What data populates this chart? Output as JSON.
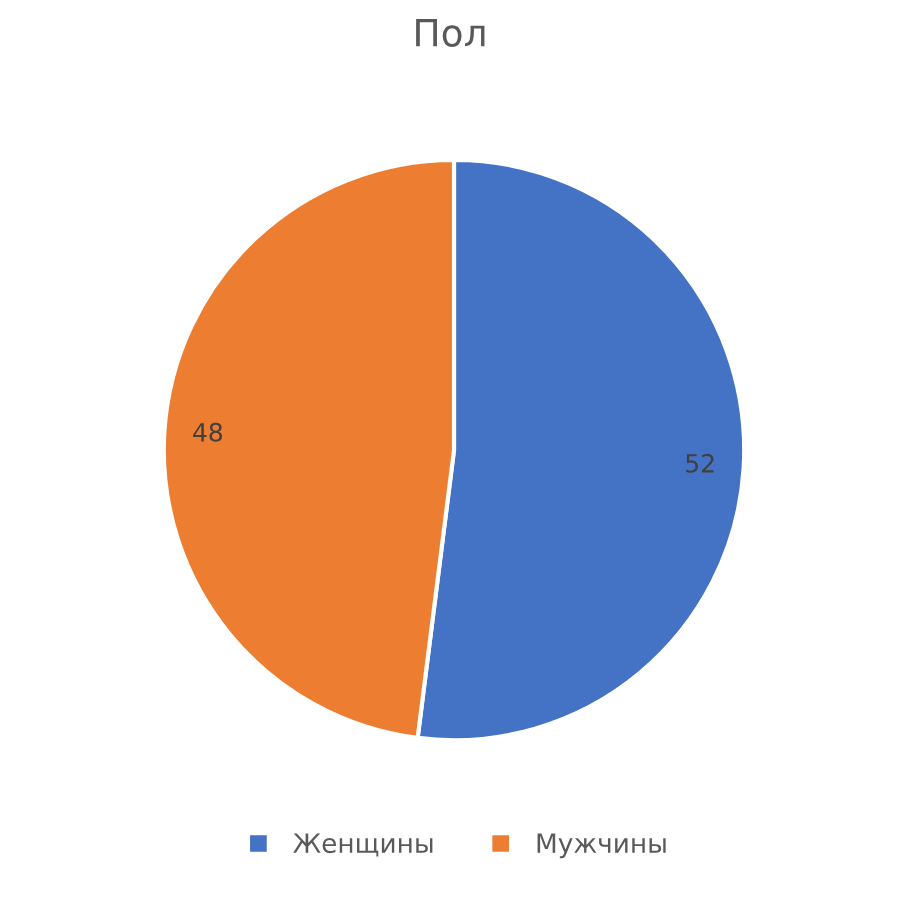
{
  "chart_data": {
    "type": "pie",
    "title": "Пол",
    "categories": [
      "Женщины",
      "Мужчины"
    ],
    "values": [
      52,
      48
    ],
    "colors": [
      "#4472c4",
      "#ed7d31"
    ],
    "data_labels": true,
    "legend": "bottom"
  }
}
